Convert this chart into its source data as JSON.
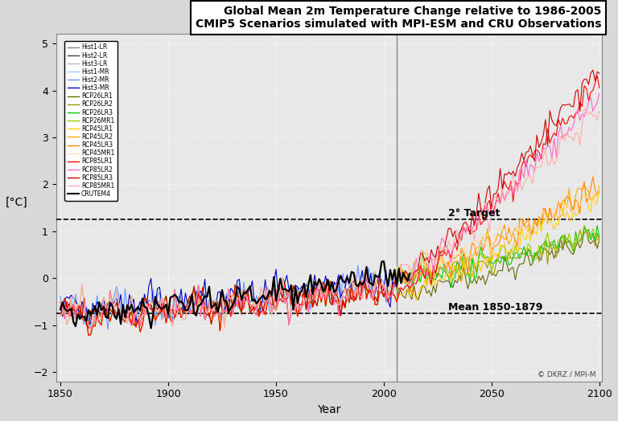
{
  "title": "Global Mean 2m Temperature Change relative to 1986-2005",
  "subtitle": "CMIP5 Scenarios simulated with MPI-ESM and CRU Observations",
  "xlabel": "Year",
  "ylabel": "[°C]",
  "xlim": [
    1848,
    2101
  ],
  "ylim": [
    -2.2,
    5.2
  ],
  "yticks": [
    -2,
    -1,
    0,
    1,
    2,
    3,
    4,
    5
  ],
  "xticks": [
    1850,
    1900,
    1950,
    2000,
    2050,
    2100
  ],
  "target_line": 1.25,
  "mean_line": -0.75,
  "obs_split": 2006,
  "copyright": "© DKRZ / MPI-M",
  "series": [
    {
      "name": "Hist1-LR",
      "color": "#888888",
      "lw": 0.8,
      "hist_end": 2006,
      "type": "hist"
    },
    {
      "name": "Hist2-LR",
      "color": "#444444",
      "lw": 0.8,
      "hist_end": 2006,
      "type": "hist"
    },
    {
      "name": "Hist3-LR",
      "color": "#bbbbbb",
      "lw": 0.8,
      "hist_end": 2006,
      "type": "hist"
    },
    {
      "name": "Hist1-MR",
      "color": "#99ccff",
      "lw": 0.8,
      "hist_end": 2006,
      "type": "hist"
    },
    {
      "name": "Hist2-MR",
      "color": "#6699ff",
      "lw": 0.8,
      "hist_end": 2006,
      "type": "hist"
    },
    {
      "name": "Hist3-MR",
      "color": "#0000cc",
      "lw": 0.8,
      "hist_end": 2006,
      "type": "hist"
    },
    {
      "name": "RCP26LR1",
      "color": "#666600",
      "lw": 0.8,
      "type": "rcp26"
    },
    {
      "name": "RCP26LR2",
      "color": "#999900",
      "lw": 0.8,
      "type": "rcp26"
    },
    {
      "name": "RCP26LR3",
      "color": "#00cc00",
      "lw": 0.8,
      "type": "rcp26"
    },
    {
      "name": "RCP26MR1",
      "color": "#99cc00",
      "lw": 0.8,
      "type": "rcp26"
    },
    {
      "name": "RCP45LR1",
      "color": "#ffcc00",
      "lw": 0.8,
      "type": "rcp45"
    },
    {
      "name": "RCP45LR2",
      "color": "#ffaa00",
      "lw": 0.8,
      "type": "rcp45"
    },
    {
      "name": "RCP45LR3",
      "color": "#ff8800",
      "lw": 0.8,
      "type": "rcp45"
    },
    {
      "name": "RCP45MR1",
      "color": "#ffddaa",
      "lw": 0.8,
      "type": "rcp45"
    },
    {
      "name": "RCP85LR1",
      "color": "#ff0000",
      "lw": 0.8,
      "type": "rcp85"
    },
    {
      "name": "RCP85LR2",
      "color": "#ff66cc",
      "lw": 0.8,
      "type": "rcp85"
    },
    {
      "name": "RCP85LR3",
      "color": "#cc0000",
      "lw": 0.8,
      "type": "rcp85"
    },
    {
      "name": "RCP85MR1",
      "color": "#ffaaaa",
      "lw": 0.8,
      "type": "rcp85"
    },
    {
      "name": "CRUTEM4",
      "color": "#000000",
      "lw": 1.6,
      "type": "obs"
    }
  ],
  "bg_color": "#d8d8d8",
  "plot_bg": "#e8e8e8"
}
